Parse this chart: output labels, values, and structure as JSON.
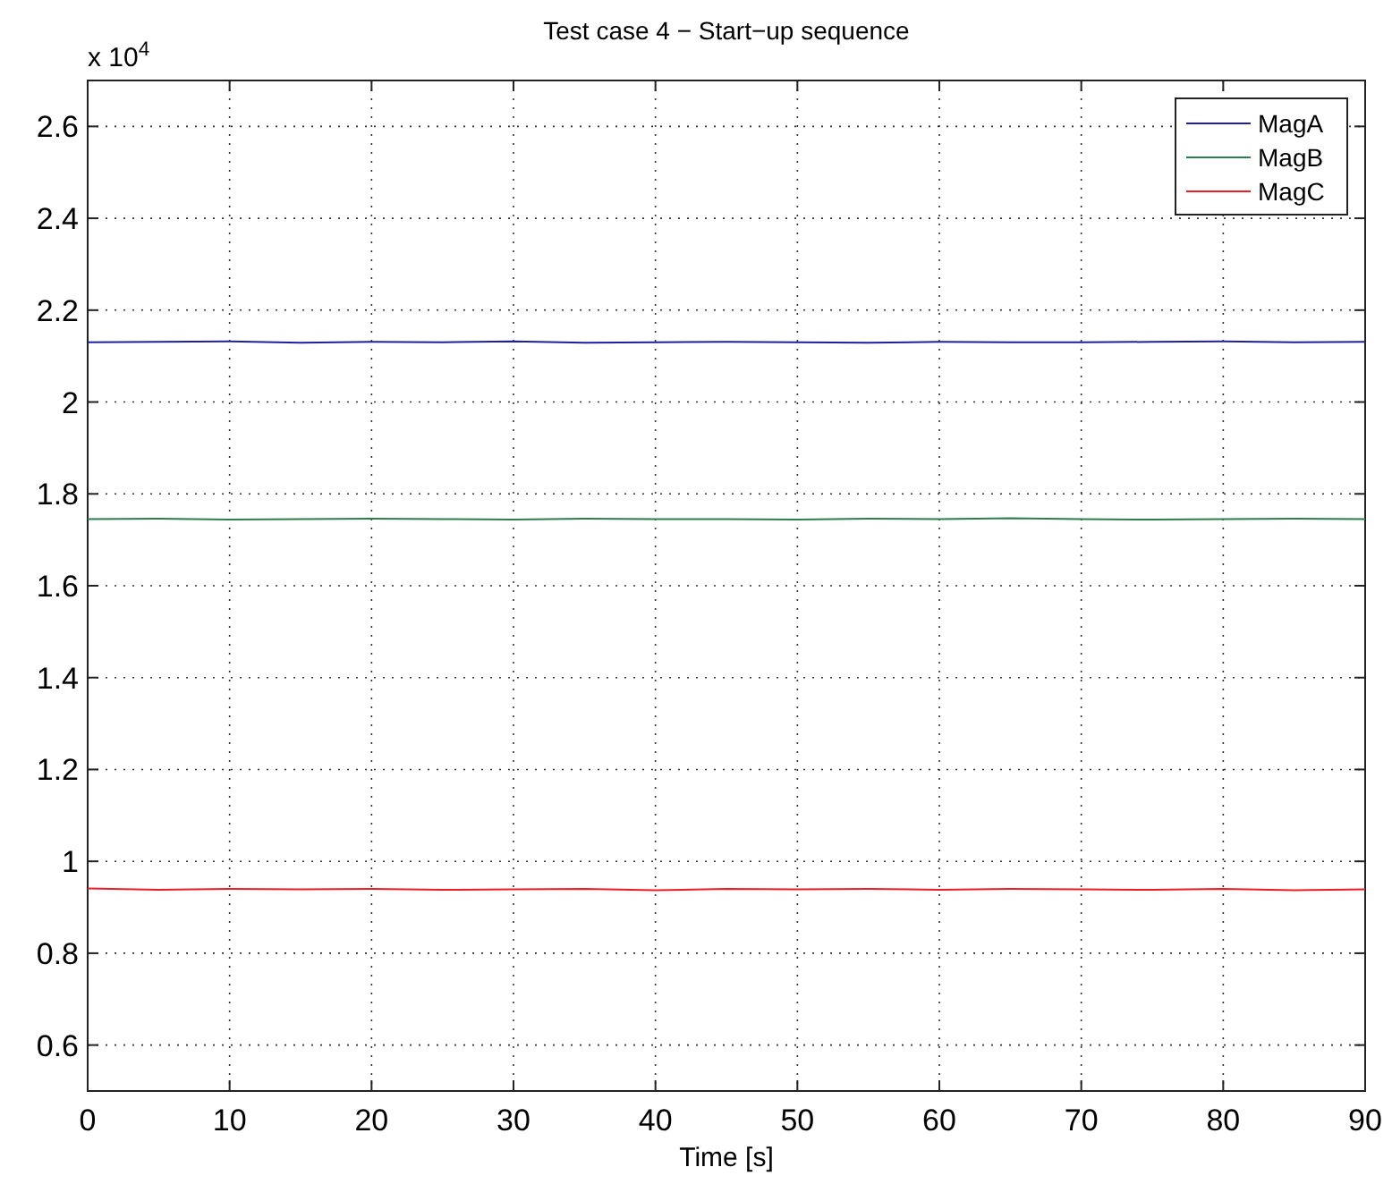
{
  "chart_data": {
    "type": "line",
    "title": "Test case 4 − Start−up sequence",
    "xlabel": "Time [s]",
    "annotations": [
      "x 10$^{4}$"
    ],
    "x": [
      0,
      5,
      10,
      15,
      20,
      25,
      30,
      35,
      40,
      45,
      50,
      55,
      60,
      65,
      70,
      75,
      80,
      85,
      90
    ],
    "series": [
      {
        "name": "MagA",
        "color": "#1f1f9f",
        "values": [
          2.13,
          2.131,
          2.132,
          2.129,
          2.131,
          2.13,
          2.132,
          2.129,
          2.13,
          2.131,
          2.13,
          2.129,
          2.131,
          2.13,
          2.13,
          2.131,
          2.132,
          2.13,
          2.131
        ]
      },
      {
        "name": "MagB",
        "color": "#2e7d4f",
        "values": [
          1.745,
          1.746,
          1.744,
          1.745,
          1.746,
          1.745,
          1.744,
          1.746,
          1.745,
          1.745,
          1.744,
          1.746,
          1.745,
          1.747,
          1.745,
          1.744,
          1.745,
          1.746,
          1.745
        ]
      },
      {
        "name": "MagC",
        "color": "#ee1c24",
        "values": [
          0.941,
          0.938,
          0.94,
          0.939,
          0.94,
          0.938,
          0.939,
          0.94,
          0.937,
          0.94,
          0.939,
          0.94,
          0.938,
          0.94,
          0.939,
          0.938,
          0.94,
          0.937,
          0.939
        ]
      }
    ],
    "xlim": [
      0,
      90
    ],
    "xticks": [
      0,
      10,
      20,
      30,
      40,
      50,
      60,
      70,
      80,
      90
    ],
    "ylim": [
      0.5,
      2.7
    ],
    "yticks": [
      0.6,
      0.8,
      1,
      1.2,
      1.4,
      1.6,
      1.8,
      2,
      2.2,
      2.4,
      2.6
    ],
    "grid": true,
    "legend": "top right",
    "marker": "none",
    "line_style": "solid"
  }
}
